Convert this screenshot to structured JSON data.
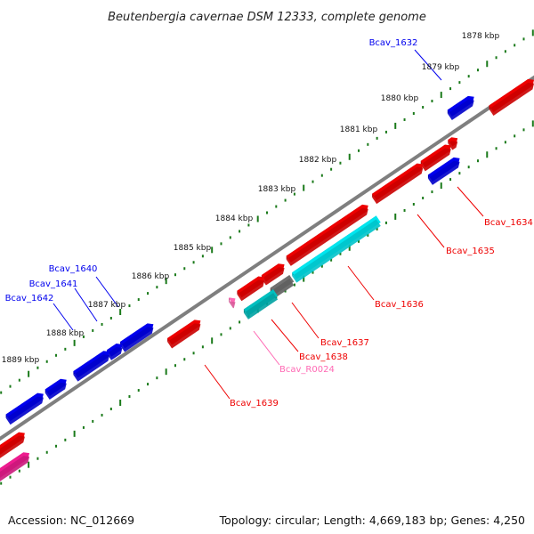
{
  "title": "Beutenbergia cavernae DSM 12333, complete genome",
  "accession_text": "Accession: NC_012669",
  "topology_text": "Topology: circular; Length: 4,669,183 bp; Genes: 4,250",
  "colors": {
    "backbone": "#7f7f7f",
    "tick": "#1a7a1a",
    "forward_gene": "#0000ee",
    "reverse_gene": "#ee0000",
    "cyan_feature": "#00e5ee",
    "teal_feature": "#00bfbf",
    "gray_feature": "#707070",
    "rna_gene": "#ff69b4",
    "pink_feature": "#ee1c8f"
  },
  "scale_labels": [
    "1878 kbp",
    "1879 kbp",
    "1880 kbp",
    "1881 kbp",
    "1882 kbp",
    "1883 kbp",
    "1884 kbp",
    "1885 kbp",
    "1886 kbp",
    "1887 kbp",
    "1888 kbp",
    "1889 kbp"
  ],
  "gene_labels": [
    "Bcav_1632",
    "Bcav_1640",
    "Bcav_1641",
    "Bcav_1642",
    "Bcav_1634",
    "Bcav_1635",
    "Bcav_1636",
    "Bcav_1637",
    "Bcav_1638",
    "Bcav_R0024",
    "Bcav_1639"
  ]
}
